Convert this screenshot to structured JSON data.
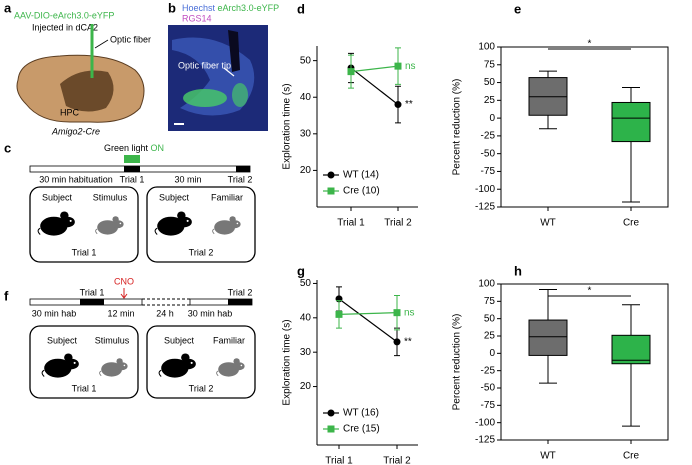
{
  "panels": {
    "a": {
      "label": "a",
      "virus": "AAV-DIO-eArch3.0-eYFP",
      "injection": "Injected in dCA2",
      "fiber": "Optic fiber",
      "region": "HPC",
      "mouse_line": "Amigo2-Cre"
    },
    "b": {
      "label": "b",
      "stains": [
        "Hoechst",
        "eArch3.0-eYFP",
        "RGS14"
      ],
      "annotation": "Optic fiber tip"
    },
    "c": {
      "label": "c",
      "light": "Green light",
      "light_state": "ON",
      "timeline": [
        "30 min habituation",
        "Trial 1",
        "30 min",
        "Trial 2"
      ],
      "arenas": [
        {
          "animals": [
            "Subject",
            "Stimulus"
          ],
          "trial": "Trial 1"
        },
        {
          "animals": [
            "Subject",
            "Familiar"
          ],
          "trial": "Trial 2"
        }
      ]
    },
    "f": {
      "label": "f",
      "drug": "CNO",
      "trials": [
        "Trial 1",
        "Trial 2"
      ],
      "timeline": [
        "30 min hab",
        "12 min",
        "24 h",
        "30 min hab"
      ],
      "arenas": [
        {
          "animals": [
            "Subject",
            "Stimulus"
          ],
          "trial": "Trial 1"
        },
        {
          "animals": [
            "Subject",
            "Familiar"
          ],
          "trial": "Trial 2"
        }
      ]
    }
  },
  "chart_data": [
    {
      "type": "line",
      "label": "d",
      "y_label": "Exploration time (s)",
      "categories": [
        "Trial 1",
        "Trial 2"
      ],
      "ylim": [
        10,
        54
      ],
      "yticks": [
        20,
        30,
        40,
        50
      ],
      "series": [
        {
          "name": "WT (14)",
          "color": "#000000",
          "marker": "circle",
          "values": [
            48,
            38
          ],
          "errors": [
            4,
            5
          ],
          "note": "**"
        },
        {
          "name": "Cre (10)",
          "color": "#3cb54a",
          "marker": "square",
          "values": [
            47,
            48.5
          ],
          "errors": [
            4.5,
            5
          ],
          "note": "ns"
        }
      ]
    },
    {
      "type": "box",
      "label": "e",
      "y_label": "Percent reduction (%)",
      "categories": [
        "WT",
        "Cre"
      ],
      "ylim": [
        -125,
        100
      ],
      "yticks": [
        -125,
        -100,
        -75,
        -50,
        -25,
        0,
        25,
        50,
        75,
        100
      ],
      "significance": "*",
      "boxes": [
        {
          "color": "#6d6d6d",
          "whisker_low": -15,
          "q1": 4,
          "median": 30,
          "q3": 57,
          "whisker_high": 66
        },
        {
          "color": "#2db34a",
          "whisker_low": -118,
          "q1": -33,
          "median": 0,
          "q3": 22,
          "whisker_high": 43
        }
      ]
    },
    {
      "type": "line",
      "label": "g",
      "y_label": "Exploration time (s)",
      "categories": [
        "Trial 1",
        "Trial 2"
      ],
      "ylim": [
        3,
        51
      ],
      "yticks": [
        20,
        30,
        40,
        50
      ],
      "series": [
        {
          "name": "WT (16)",
          "color": "#000000",
          "marker": "circle",
          "values": [
            45.5,
            33
          ],
          "errors": [
            3.5,
            4
          ],
          "note": "**"
        },
        {
          "name": "Cre (15)",
          "color": "#3cb54a",
          "marker": "square",
          "values": [
            41,
            41.5
          ],
          "errors": [
            4,
            5
          ],
          "note": "ns"
        }
      ]
    },
    {
      "type": "box",
      "label": "h",
      "y_label": "Percent reduction (%)",
      "categories": [
        "WT",
        "Cre"
      ],
      "ylim": [
        -125,
        100
      ],
      "yticks": [
        -125,
        -100,
        -75,
        -50,
        -25,
        0,
        25,
        50,
        75,
        100
      ],
      "significance": "*",
      "boxes": [
        {
          "color": "#6d6d6d",
          "whisker_low": -43,
          "q1": -3,
          "median": 24,
          "q3": 48,
          "whisker_high": 92
        },
        {
          "color": "#2db34a",
          "whisker_low": -105,
          "q1": -15,
          "median": -10,
          "q3": 26,
          "whisker_high": 70
        }
      ]
    }
  ]
}
